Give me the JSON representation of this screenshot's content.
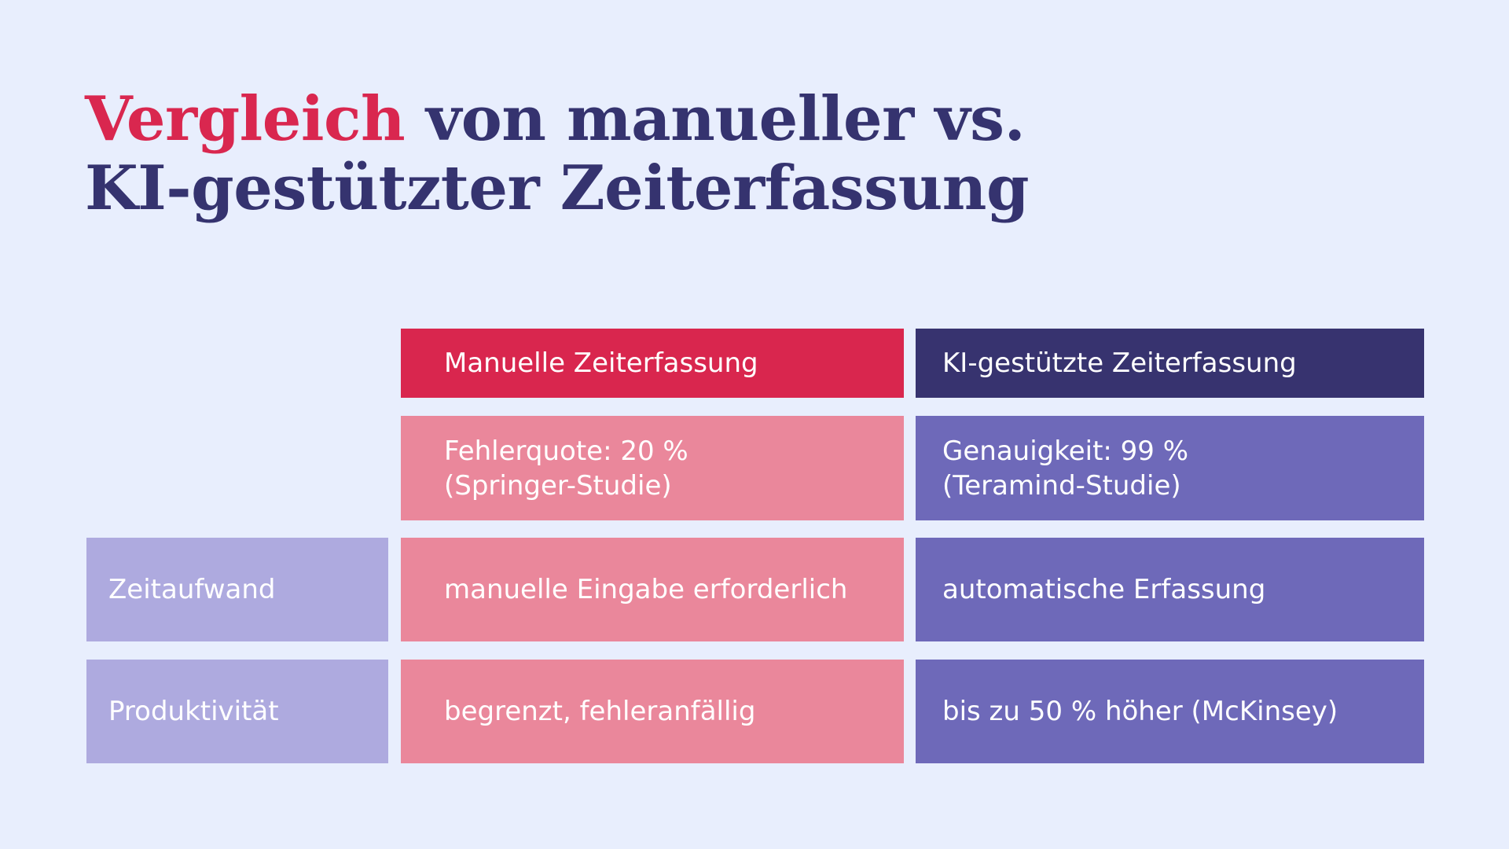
{
  "title": {
    "accent": "Vergleich",
    "rest_line1": " von manueller vs.",
    "line2": "KI-gestützter Zeiterfassung"
  },
  "table": {
    "headers": {
      "manual": "Manuelle Zeiterfassung",
      "ki": "KI-gestützte Zeiterfassung"
    },
    "rows": [
      {
        "label": "",
        "manual": "Fehlerquote: 20 %\n(Springer-Studie)",
        "ki": "Genauigkeit: 99 %\n(Teramind-Studie)"
      },
      {
        "label": "Zeitaufwand",
        "manual": "manuelle Eingabe erforderlich",
        "ki": "automatische Erfassung"
      },
      {
        "label": "Produktivität",
        "manual": "begrenzt, fehleranfällig",
        "ki": "bis zu 50 % höher (McKinsey)"
      }
    ]
  },
  "colors": {
    "background": "#e8eefd",
    "title": "#35336f",
    "accent": "#d9274f",
    "manual_header": "#d9264e",
    "ki_header": "#37336f",
    "manual_cell": "#ea879b",
    "ki_cell": "#6e69b9",
    "row_label": "#aeaadf"
  }
}
